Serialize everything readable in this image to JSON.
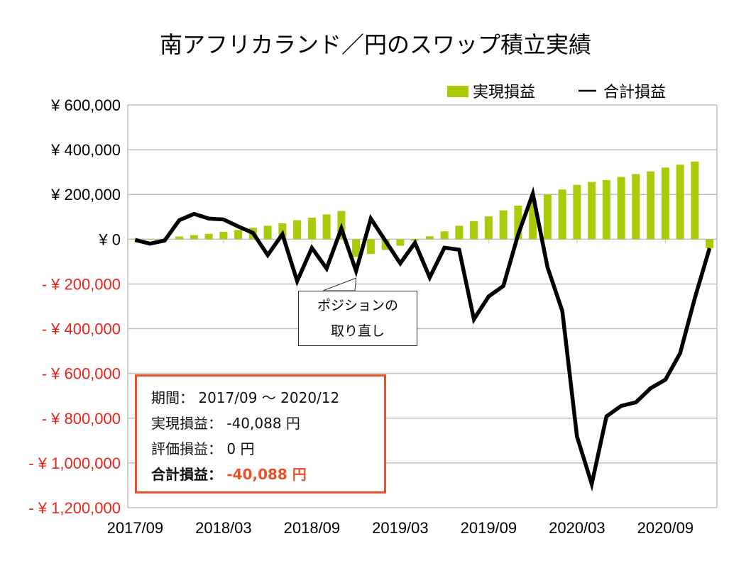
{
  "chart_data": {
    "type": "bar+line",
    "title": "南アフリカランド／円のスワップ積立実績",
    "xlabel": "",
    "ylabel": "",
    "ylim": [
      -1200000,
      600000
    ],
    "grid": true,
    "legend_position": "top-right",
    "yticks": [
      600000,
      400000,
      200000,
      0,
      -200000,
      -400000,
      -600000,
      -800000,
      -1000000,
      -1200000
    ],
    "ytick_labels": [
      "¥ 600,000",
      "¥ 400,000",
      "¥ 200,000",
      "¥ 0",
      "- ¥ 200,000",
      "- ¥ 400,000",
      "- ¥ 600,000",
      "- ¥ 800,000",
      "- ¥ 1,000,000",
      "- ¥ 1,200,000"
    ],
    "xtick_labels": [
      "2017/09",
      "2018/03",
      "2018/09",
      "2019/03",
      "2019/09",
      "2020/03",
      "2020/09"
    ],
    "categories": [
      "2017/09",
      "2017/10",
      "2017/11",
      "2017/12",
      "2018/01",
      "2018/02",
      "2018/03",
      "2018/04",
      "2018/05",
      "2018/06",
      "2018/07",
      "2018/08",
      "2018/09",
      "2018/10",
      "2018/11",
      "2018/12",
      "2019/01",
      "2019/02",
      "2019/03",
      "2019/04",
      "2019/05",
      "2019/06",
      "2019/07",
      "2019/08",
      "2019/09",
      "2019/10",
      "2019/11",
      "2019/12",
      "2020/01",
      "2020/02",
      "2020/03",
      "2020/04",
      "2020/05",
      "2020/06",
      "2020/07",
      "2020/08",
      "2020/09",
      "2020/10",
      "2020/11",
      "2020/12"
    ],
    "series": [
      {
        "name": "実現損益",
        "kind": "bar",
        "color": "#a8cc0a",
        "values": [
          2000,
          1000,
          0,
          12000,
          18000,
          24000,
          33000,
          41000,
          51000,
          60000,
          71000,
          85000,
          96000,
          111000,
          126000,
          -79000,
          -66000,
          -48000,
          -29000,
          -7000,
          13000,
          35000,
          60000,
          81000,
          102000,
          129000,
          150000,
          174000,
          200000,
          222000,
          243000,
          256000,
          264000,
          278000,
          291000,
          303000,
          320000,
          333000,
          347000,
          -40088
        ]
      },
      {
        "name": "合計損益",
        "kind": "line",
        "color": "#000000",
        "values": [
          -3000,
          -20000,
          -6000,
          85000,
          113000,
          92000,
          88000,
          57000,
          28000,
          -71000,
          22000,
          -187000,
          -39000,
          -131000,
          48000,
          -142000,
          92000,
          -8000,
          -108000,
          -16000,
          -171000,
          -38000,
          -47000,
          -358000,
          -256000,
          -209000,
          20000,
          203000,
          -126000,
          -320000,
          -882000,
          -1094000,
          -792000,
          -745000,
          -729000,
          -666000,
          -628000,
          -510000,
          -263000,
          -40088
        ]
      }
    ],
    "annotation": {
      "line1": "ポジションの",
      "line2": "取り直し",
      "at": "2018/12"
    },
    "colors": {
      "negative_tick": "#e8241a",
      "box_border": "#e8512a"
    }
  },
  "info": {
    "period_label": "期間：",
    "period_value": "2017/09 ～ 2020/12",
    "realized_label": "実現損益：",
    "realized_value": "-40,088 円",
    "unrealized_label": "評価損益：",
    "unrealized_value": "0 円",
    "total_label": "合計損益：",
    "total_value": "-40,088 円"
  }
}
